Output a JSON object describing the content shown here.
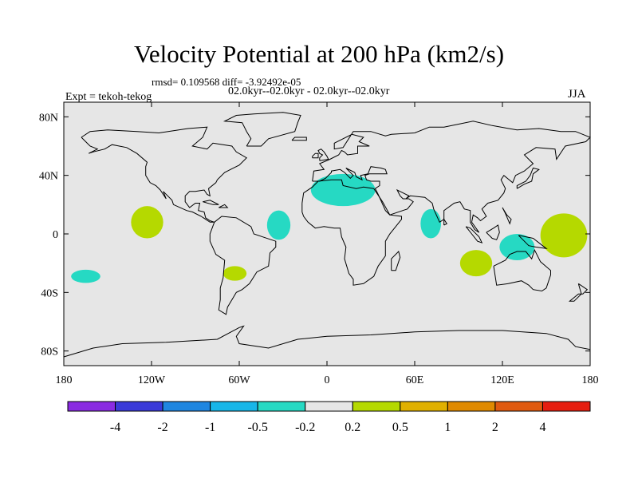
{
  "header": {
    "title": "Velocity Potential at 200 hPa (km2/s)",
    "stats": "rmsd= 0.109568 diff= -3.92492e-05",
    "period": "02.0kyr--02.0kyr - 02.0kyr--02.0kyr",
    "experiment": "Expt = tekoh-tekog",
    "season": "JJA"
  },
  "map": {
    "ocean_color": "#e6e6e6",
    "lon_range": [
      -180,
      180
    ],
    "lat_range": [
      -90,
      90
    ],
    "lon_ticks": [
      {
        "value": -180,
        "label": "180"
      },
      {
        "value": -120,
        "label": "120W"
      },
      {
        "value": -60,
        "label": "60W"
      },
      {
        "value": 0,
        "label": "0"
      },
      {
        "value": 60,
        "label": "60E"
      },
      {
        "value": 120,
        "label": "120E"
      },
      {
        "value": 180,
        "label": "180"
      }
    ],
    "lat_ticks": [
      {
        "value": 80,
        "label": "80N"
      },
      {
        "value": 40,
        "label": "40N"
      },
      {
        "value": 0,
        "label": "0"
      },
      {
        "value": -40,
        "label": "40S"
      },
      {
        "value": -80,
        "label": "80S"
      }
    ],
    "anomalies": [
      {
        "name": "east-pacific-positive",
        "lon": -123,
        "lat": 8,
        "rlon": 11,
        "rlat": 11,
        "color": "#b5d900"
      },
      {
        "name": "south-pacific-negative",
        "lon": -165,
        "lat": -29,
        "rlon": 10,
        "rlat": 4.5,
        "color": "#26d9c3"
      },
      {
        "name": "south-america-positive",
        "lon": -63,
        "lat": -27,
        "rlon": 8,
        "rlat": 5,
        "color": "#b5d900"
      },
      {
        "name": "atlantic-negative",
        "lon": -33,
        "lat": 6,
        "rlon": 8,
        "rlat": 10,
        "color": "#26d9c3"
      },
      {
        "name": "north-africa-negative",
        "lon": 11,
        "lat": 30,
        "rlon": 22,
        "rlat": 11,
        "color": "#26d9c3"
      },
      {
        "name": "indian-ocean-negative",
        "lon": 71,
        "lat": 7,
        "rlon": 7,
        "rlat": 10,
        "color": "#26d9c3"
      },
      {
        "name": "southeast-indian-positive",
        "lon": 102,
        "lat": -20,
        "rlon": 11,
        "rlat": 9,
        "color": "#b5d900"
      },
      {
        "name": "indonesia-negative",
        "lon": 130,
        "lat": -9,
        "rlon": 12,
        "rlat": 9,
        "color": "#26d9c3"
      },
      {
        "name": "west-pacific-positive",
        "lon": 162,
        "lat": -1,
        "rlon": 16,
        "rlat": 15,
        "color": "#b5d900"
      }
    ]
  },
  "colorbar": {
    "colors": [
      "#8a2be2",
      "#3a3ad8",
      "#1f86e0",
      "#17b6e8",
      "#26d9c3",
      "#e6e6e6",
      "#b5d900",
      "#e0b000",
      "#e08a00",
      "#e05a10",
      "#e61e10"
    ],
    "labels": [
      "-4",
      "-2",
      "-1",
      "-0.5",
      "-0.2",
      "0.2",
      "0.5",
      "1",
      "2",
      "4"
    ]
  }
}
